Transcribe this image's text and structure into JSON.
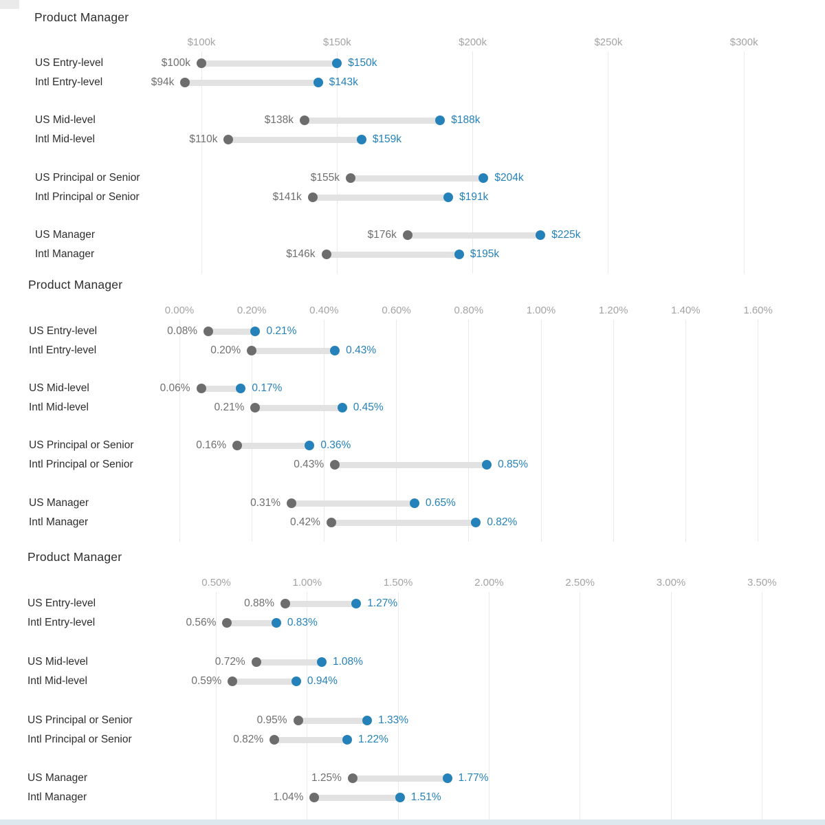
{
  "colors": {
    "background": "#ffffff",
    "title_text": "#2e2e2e",
    "row_label_text": "#2e2e2e",
    "axis_tick_text": "#a3a3a3",
    "gridline": "#e9e9e9",
    "bar": "#e2e2e2",
    "start_dot": "#6d6d6d",
    "start_value_text": "#6f6f6f",
    "end_dot": "#2581b9",
    "end_value_text": "#2581b9"
  },
  "chart_data": [
    {
      "type": "dumbbell",
      "title": "Product Manager",
      "xlabel": "",
      "ylabel": "",
      "grid": true,
      "legend": null,
      "x_axis": {
        "tick_labels": [
          "$100k",
          "$150k",
          "$200k",
          "$250k",
          "$300k"
        ],
        "tick_values": [
          100,
          150,
          200,
          250,
          300
        ],
        "unit": "USD thousands"
      },
      "rows": [
        {
          "label": "US Entry-level",
          "start": 100,
          "end": 150,
          "start_label": "$100k",
          "end_label": "$150k"
        },
        {
          "label": "Intl Entry-level",
          "start": 94,
          "end": 143,
          "start_label": "$94k",
          "end_label": "$143k"
        },
        {
          "label": "US Mid-level",
          "start": 138,
          "end": 188,
          "start_label": "$138k",
          "end_label": "$188k"
        },
        {
          "label": "Intl Mid-level",
          "start": 110,
          "end": 159,
          "start_label": "$110k",
          "end_label": "$159k"
        },
        {
          "label": "US Principal or Senior",
          "start": 155,
          "end": 204,
          "start_label": "$155k",
          "end_label": "$204k"
        },
        {
          "label": "Intl Principal or Senior",
          "start": 141,
          "end": 191,
          "start_label": "$141k",
          "end_label": "$191k"
        },
        {
          "label": "US Manager",
          "start": 176,
          "end": 225,
          "start_label": "$176k",
          "end_label": "$225k"
        },
        {
          "label": "Intl Manager",
          "start": 146,
          "end": 195,
          "start_label": "$146k",
          "end_label": "$195k"
        }
      ]
    },
    {
      "type": "dumbbell",
      "title": "Product Manager",
      "xlabel": "",
      "ylabel": "",
      "grid": true,
      "legend": null,
      "x_axis": {
        "tick_labels": [
          "0.00%",
          "0.20%",
          "0.40%",
          "0.60%",
          "0.80%",
          "1.00%",
          "1.20%",
          "1.40%",
          "1.60%"
        ],
        "tick_values": [
          0.0,
          0.2,
          0.4,
          0.6,
          0.8,
          1.0,
          1.2,
          1.4,
          1.6
        ],
        "unit": "percent"
      },
      "rows": [
        {
          "label": "US Entry-level",
          "start": 0.08,
          "end": 0.21,
          "start_label": "0.08%",
          "end_label": "0.21%"
        },
        {
          "label": "Intl Entry-level",
          "start": 0.2,
          "end": 0.43,
          "start_label": "0.20%",
          "end_label": "0.43%"
        },
        {
          "label": "US Mid-level",
          "start": 0.06,
          "end": 0.17,
          "start_label": "0.06%",
          "end_label": "0.17%"
        },
        {
          "label": "Intl Mid-level",
          "start": 0.21,
          "end": 0.45,
          "start_label": "0.21%",
          "end_label": "0.45%"
        },
        {
          "label": "US Principal or Senior",
          "start": 0.16,
          "end": 0.36,
          "start_label": "0.16%",
          "end_label": "0.36%"
        },
        {
          "label": "Intl Principal or Senior",
          "start": 0.43,
          "end": 0.85,
          "start_label": "0.43%",
          "end_label": "0.85%"
        },
        {
          "label": "US Manager",
          "start": 0.31,
          "end": 0.65,
          "start_label": "0.31%",
          "end_label": "0.65%"
        },
        {
          "label": "Intl Manager",
          "start": 0.42,
          "end": 0.82,
          "start_label": "0.42%",
          "end_label": "0.82%"
        }
      ]
    },
    {
      "type": "dumbbell",
      "title": "Product Manager",
      "xlabel": "",
      "ylabel": "",
      "grid": true,
      "legend": null,
      "x_axis": {
        "tick_labels": [
          "0.50%",
          "1.00%",
          "1.50%",
          "2.00%",
          "2.50%",
          "3.00%",
          "3.50%"
        ],
        "tick_values": [
          0.5,
          1.0,
          1.5,
          2.0,
          2.5,
          3.0,
          3.5
        ],
        "unit": "percent"
      },
      "rows": [
        {
          "label": "US Entry-level",
          "start": 0.88,
          "end": 1.27,
          "start_label": "0.88%",
          "end_label": "1.27%"
        },
        {
          "label": "Intl Entry-level",
          "start": 0.56,
          "end": 0.83,
          "start_label": "0.56%",
          "end_label": "0.83%"
        },
        {
          "label": "US Mid-level",
          "start": 0.72,
          "end": 1.08,
          "start_label": "0.72%",
          "end_label": "1.08%"
        },
        {
          "label": "Intl Mid-level",
          "start": 0.59,
          "end": 0.94,
          "start_label": "0.59%",
          "end_label": "0.94%"
        },
        {
          "label": "US Principal or Senior",
          "start": 0.95,
          "end": 1.33,
          "start_label": "0.95%",
          "end_label": "1.33%"
        },
        {
          "label": "Intl Principal or Senior",
          "start": 0.82,
          "end": 1.22,
          "start_label": "0.82%",
          "end_label": "1.22%"
        },
        {
          "label": "US Manager",
          "start": 1.25,
          "end": 1.77,
          "start_label": "1.25%",
          "end_label": "1.77%"
        },
        {
          "label": "Intl Manager",
          "start": 1.04,
          "end": 1.51,
          "start_label": "1.04%",
          "end_label": "1.51%"
        }
      ]
    }
  ]
}
